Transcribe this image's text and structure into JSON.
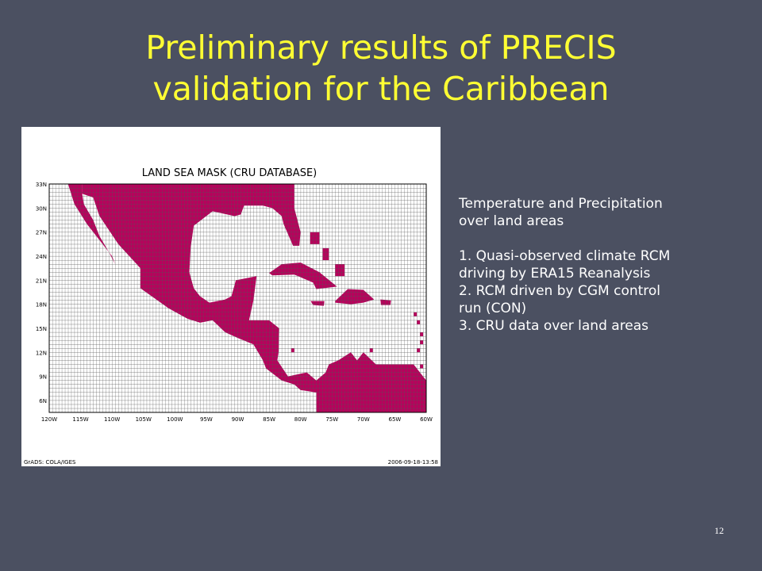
{
  "title": {
    "lines": [
      "Preliminary results of PRECIS",
      "validation for the Caribbean"
    ]
  },
  "map": {
    "title": "LAND SEA MASK (CRU DATABASE)",
    "lat_labels": [
      "33N",
      "30N",
      "27N",
      "24N",
      "21N",
      "18N",
      "15N",
      "12N",
      "9N",
      "6N"
    ],
    "lon_labels": [
      "120W",
      "115W",
      "110W",
      "105W",
      "100W",
      "95W",
      "90W",
      "85W",
      "80W",
      "75W",
      "70W",
      "65W",
      "60W"
    ],
    "credit": "GrADS: COLA/IGES",
    "timestamp": "2006-09-18-13:58"
  },
  "notes": {
    "heading": [
      "Temperature and Precipitation",
      "over land areas"
    ],
    "items": [
      [
        "1. Quasi-observed climate RCM",
        "driving by ERA15 Reanalysis"
      ],
      [
        "2. RCM driven by CGM control",
        "run (CON)"
      ],
      [
        "3. CRU data over land areas"
      ]
    ]
  },
  "slide_number": "12"
}
